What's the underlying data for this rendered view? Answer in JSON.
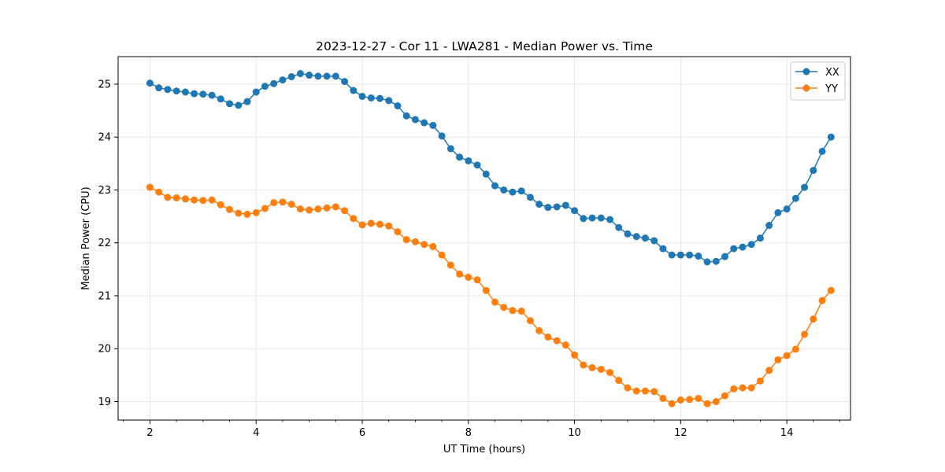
{
  "chart_data": {
    "type": "line",
    "title": "2023-12-27 - Cor 11 - LWA281 - Median Power vs. Time",
    "xlabel": "UT Time (hours)",
    "ylabel": "Median Power (CPU)",
    "xlim": [
      1.4,
      15.2
    ],
    "ylim": [
      18.65,
      25.52
    ],
    "xticks": [
      2,
      4,
      6,
      8,
      10,
      12,
      14
    ],
    "xtick_labels": [
      "2",
      "4",
      "6",
      "8",
      "10",
      "12",
      "14"
    ],
    "yticks": [
      19,
      20,
      21,
      22,
      23,
      24,
      25
    ],
    "ytick_labels": [
      "19",
      "20",
      "21",
      "22",
      "23",
      "24",
      "25"
    ],
    "x_minor_ticks": [
      1.5,
      2.5,
      3,
      3.5,
      4.5,
      5,
      5.5,
      6.5,
      7,
      7.5,
      8.5,
      9,
      9.5,
      10.5,
      11,
      11.5,
      12.5,
      13,
      13.5,
      14.5,
      15
    ],
    "grid": true,
    "legend_position": "upper right",
    "series": [
      {
        "name": "XX",
        "color": "#1f77b4",
        "x": [
          2.0,
          2.167,
          2.333,
          2.5,
          2.667,
          2.833,
          3.0,
          3.167,
          3.333,
          3.5,
          3.667,
          3.833,
          4.0,
          4.167,
          4.333,
          4.5,
          4.667,
          4.833,
          5.0,
          5.167,
          5.333,
          5.5,
          5.667,
          5.833,
          6.0,
          6.167,
          6.333,
          6.5,
          6.667,
          6.833,
          7.0,
          7.167,
          7.333,
          7.5,
          7.667,
          7.833,
          8.0,
          8.167,
          8.333,
          8.5,
          8.667,
          8.833,
          9.0,
          9.167,
          9.333,
          9.5,
          9.667,
          9.833,
          10.0,
          10.167,
          10.333,
          10.5,
          10.667,
          10.833,
          11.0,
          11.167,
          11.333,
          11.5,
          11.667,
          11.833,
          12.0,
          12.167,
          12.333,
          12.5,
          12.667,
          12.833,
          13.0,
          13.167,
          13.333,
          13.5,
          13.667,
          13.833,
          14.0,
          14.167,
          14.333,
          14.5,
          14.667,
          14.833
        ],
        "values": [
          25.02,
          24.93,
          24.9,
          24.87,
          24.85,
          24.82,
          24.81,
          24.79,
          24.72,
          24.63,
          24.6,
          24.67,
          24.85,
          24.96,
          25.01,
          25.08,
          25.14,
          25.2,
          25.17,
          25.15,
          25.15,
          25.15,
          25.05,
          24.88,
          24.77,
          24.74,
          24.73,
          24.69,
          24.59,
          24.4,
          24.33,
          24.27,
          24.22,
          24.02,
          23.78,
          23.62,
          23.55,
          23.47,
          23.3,
          23.08,
          23.0,
          22.96,
          22.98,
          22.86,
          22.73,
          22.67,
          22.68,
          22.71,
          22.61,
          22.46,
          22.47,
          22.47,
          22.44,
          22.29,
          22.17,
          22.12,
          22.09,
          22.04,
          21.89,
          21.77,
          21.77,
          21.77,
          21.75,
          21.64,
          21.65,
          21.74,
          21.89,
          21.92,
          21.97,
          22.09,
          22.33,
          22.57,
          22.64,
          22.84,
          23.05,
          23.37,
          23.73,
          24.0
        ]
      },
      {
        "name": "YY",
        "color": "#ff7f0e",
        "x": [
          2.0,
          2.167,
          2.333,
          2.5,
          2.667,
          2.833,
          3.0,
          3.167,
          3.333,
          3.5,
          3.667,
          3.833,
          4.0,
          4.167,
          4.333,
          4.5,
          4.667,
          4.833,
          5.0,
          5.167,
          5.333,
          5.5,
          5.667,
          5.833,
          6.0,
          6.167,
          6.333,
          6.5,
          6.667,
          6.833,
          7.0,
          7.167,
          7.333,
          7.5,
          7.667,
          7.833,
          8.0,
          8.167,
          8.333,
          8.5,
          8.667,
          8.833,
          9.0,
          9.167,
          9.333,
          9.5,
          9.667,
          9.833,
          10.0,
          10.167,
          10.333,
          10.5,
          10.667,
          10.833,
          11.0,
          11.167,
          11.333,
          11.5,
          11.667,
          11.833,
          12.0,
          12.167,
          12.333,
          12.5,
          12.667,
          12.833,
          13.0,
          13.167,
          13.333,
          13.5,
          13.667,
          13.833,
          14.0,
          14.167,
          14.333,
          14.5,
          14.667,
          14.833
        ],
        "values": [
          23.05,
          22.96,
          22.86,
          22.85,
          22.83,
          22.81,
          22.8,
          22.81,
          22.72,
          22.63,
          22.56,
          22.54,
          22.57,
          22.65,
          22.76,
          22.77,
          22.73,
          22.64,
          22.62,
          22.64,
          22.66,
          22.68,
          22.61,
          22.46,
          22.34,
          22.37,
          22.35,
          22.32,
          22.21,
          22.06,
          22.02,
          21.97,
          21.93,
          21.77,
          21.58,
          21.41,
          21.35,
          21.3,
          21.1,
          20.88,
          20.78,
          20.72,
          20.71,
          20.53,
          20.34,
          20.22,
          20.15,
          20.07,
          19.88,
          19.69,
          19.64,
          19.61,
          19.55,
          19.4,
          19.26,
          19.2,
          19.2,
          19.19,
          19.06,
          18.96,
          19.03,
          19.04,
          19.06,
          18.96,
          19.0,
          19.11,
          19.24,
          19.26,
          19.26,
          19.39,
          19.59,
          19.79,
          19.87,
          19.99,
          20.27,
          20.56,
          20.91,
          21.1
        ]
      }
    ]
  }
}
